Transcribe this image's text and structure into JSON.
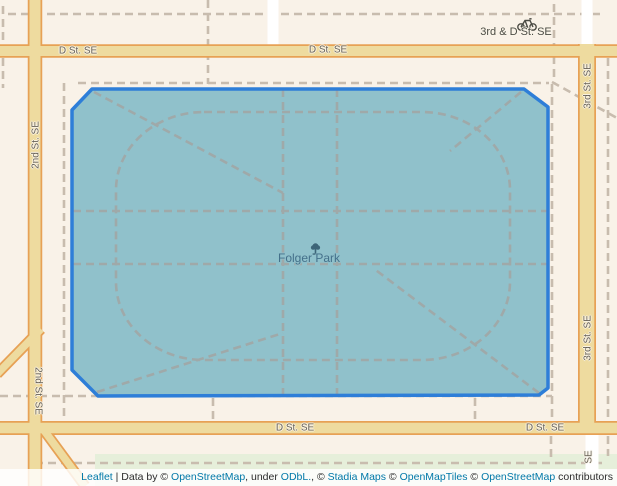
{
  "map": {
    "park_label": "Folger Park",
    "bike_station_label": "3rd & D St. SE",
    "street_labels": {
      "d_st_top_left": "D St. SE",
      "d_st_top_center": "D St. SE",
      "d_st_bottom_center": "D St. SE",
      "d_st_bottom_right": "D St. SE",
      "second_st_top": "2nd St. SE",
      "second_st_bottom": "2nd St. SE",
      "third_st_top": "3rd St. SE",
      "third_st_bottom": "3rd St. SE",
      "se_fragment_bottom_right": "SE"
    },
    "icons": {
      "bike_icon": "bicycle",
      "tree_icon": "park-tree"
    },
    "colors": {
      "land": "#f9f2e8",
      "park_green": "#e6efda",
      "road_fill": "#eedb9f",
      "road_casing": "#e7a155",
      "path_dash": "#c8bcae",
      "park_dash": "#9fa9a9",
      "polygon_fill": "#90c1cb",
      "polygon_stroke": "#2e7ed8",
      "street_label_color": "#686256",
      "poi_label_color": "#4b4b44",
      "park_label_color": "#44708a",
      "link_color": "#0078a8"
    }
  },
  "attribution": {
    "segments": [
      {
        "t": "Leaflet",
        "link": true,
        "name": "leaflet-link"
      },
      {
        "t": " | Data by © ",
        "link": false,
        "name": "attribution-text"
      },
      {
        "t": "OpenStreetMap",
        "link": true,
        "name": "openstreetmap-link"
      },
      {
        "t": ", under ",
        "link": false,
        "name": "attribution-text"
      },
      {
        "t": "ODbL.",
        "link": true,
        "name": "odbl-link"
      },
      {
        "t": ", © ",
        "link": false,
        "name": "attribution-text"
      },
      {
        "t": "Stadia Maps",
        "link": true,
        "name": "stadia-maps-link"
      },
      {
        "t": " © ",
        "link": false,
        "name": "attribution-text"
      },
      {
        "t": "OpenMapTiles",
        "link": true,
        "name": "openmaptiles-link"
      },
      {
        "t": " © ",
        "link": false,
        "name": "attribution-text"
      },
      {
        "t": "OpenStreetMap",
        "link": true,
        "name": "openstreetmap-link-2"
      },
      {
        "t": " contributors",
        "link": false,
        "name": "attribution-text"
      }
    ]
  }
}
